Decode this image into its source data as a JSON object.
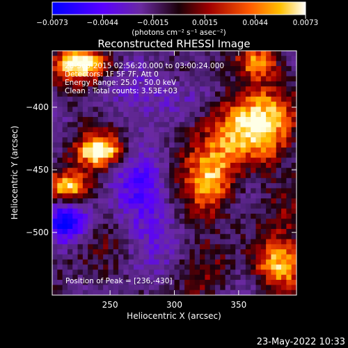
{
  "chart_data": {
    "type": "heatmap",
    "title": "Reconstructed RHESSI Image",
    "xlabel": "Heliocentric X (arcsec)",
    "ylabel": "Heliocentric Y (arcsec)",
    "xlim": [
      205,
      395
    ],
    "ylim": [
      -550,
      -355
    ],
    "x_ticks": [
      {
        "value": 250,
        "label": "250"
      },
      {
        "value": 300,
        "label": "300"
      },
      {
        "value": 350,
        "label": "350"
      }
    ],
    "y_ticks": [
      {
        "value": -400,
        "label": "−400"
      },
      {
        "value": -450,
        "label": "−450"
      },
      {
        "value": -500,
        "label": "−500"
      }
    ],
    "colorbar": {
      "min": -0.0073,
      "max": 0.0073,
      "units": "(photons cm⁻² s⁻¹ asec⁻²)",
      "ticks": [
        {
          "value": -0.0073,
          "label": "−0.0073"
        },
        {
          "value": -0.0044,
          "label": "−0.0044"
        },
        {
          "value": -0.0015,
          "label": "−0.0015"
        },
        {
          "value": 0.0015,
          "label": "0.0015"
        },
        {
          "value": 0.0044,
          "label": "0.0044"
        },
        {
          "value": 0.0073,
          "label": "0.0073"
        }
      ]
    },
    "annotations": [
      "28-Sep-2015 02:56:20.000 to 03:00:24.000",
      "Detectors: 1F 5F 7F, Att 0",
      "Energy Range: 25.0 - 50.0 keV",
      "Clean : Total counts: 3.53E+03"
    ],
    "peak_label": "Position of Peak = [236,-430]",
    "peak": [
      236,
      -430
    ],
    "image_grid": {
      "columns": 48,
      "rows": 48
    }
  },
  "timestamp": "23-May-2022 10:33",
  "colors": {
    "background": "#000000",
    "text": "#ffffff",
    "colormap": [
      "#0000ff",
      "#7a00ff",
      "#5a2a7a",
      "#2a0a1a",
      "#cc0000",
      "#ff7a00",
      "#ffd000",
      "#ffffff"
    ]
  }
}
